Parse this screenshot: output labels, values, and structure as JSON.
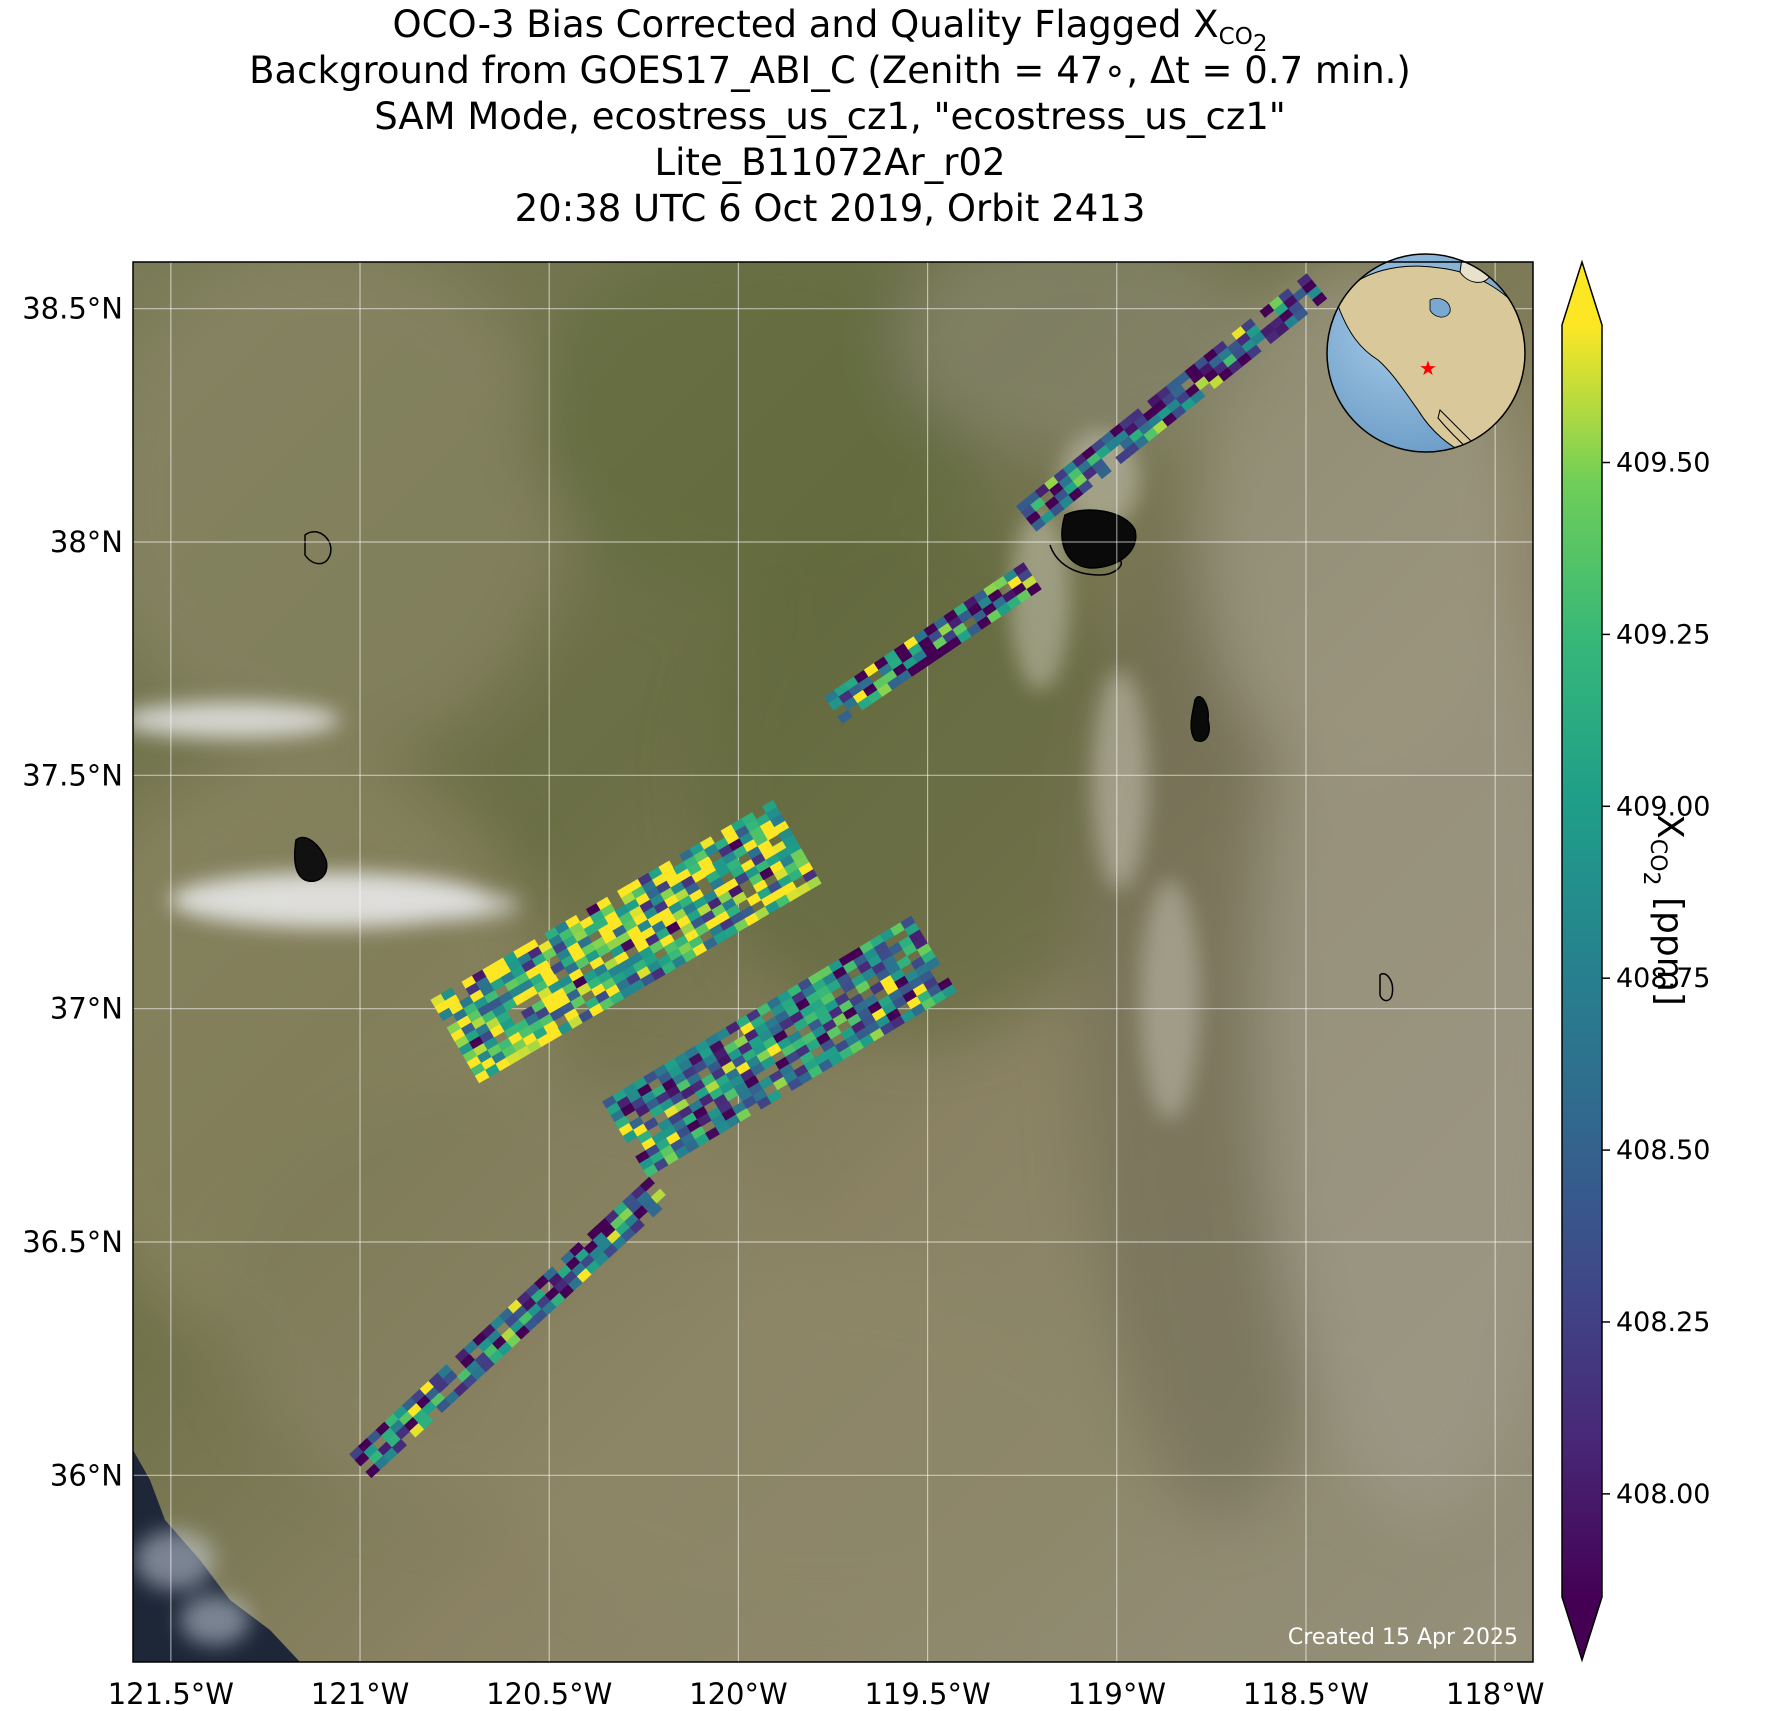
{
  "title": {
    "line1_text": "OCO-3 Bias Corrected and Quality Flagged X",
    "line1_sub": "CO",
    "line1_subsub": "2",
    "line2": "Background from GOES17_ABI_C (Zenith = 47∘, Δt =  0.7 min.)",
    "line3": "SAM Mode, ecostress_us_cz1, \"ecostress_us_cz1\"",
    "line4": "Lite_B11072Ar_r02",
    "line5": "20:38 UTC 6 Oct 2019, Orbit 2413"
  },
  "map": {
    "lon_range": [
      -121.6,
      -117.9
    ],
    "lat_range": [
      35.6,
      38.6
    ],
    "lon_ticks": [
      -121.5,
      -121.0,
      -120.5,
      -120.0,
      -119.5,
      -119.0,
      -118.5,
      -118.0
    ],
    "lon_tick_labels": [
      "121.5°W",
      "121°W",
      "120.5°W",
      "120°W",
      "119.5°W",
      "119°W",
      "118.5°W",
      "118°W"
    ],
    "lat_ticks": [
      36.0,
      36.5,
      37.0,
      37.5,
      38.0,
      38.5
    ],
    "lat_tick_labels": [
      "36°N",
      "36.5°N",
      "37°N",
      "37.5°N",
      "38°N",
      "38.5°N"
    ],
    "grid": true,
    "background": "satellite imagery (GOES17 ABI true color)",
    "credit": "Created 15 Apr 2025",
    "inset": "globe-locator-map",
    "inset_marker_color": "#ff0000"
  },
  "swaths": [
    {
      "name": "swath-north",
      "start": [
        -119.24,
        38.05
      ],
      "end": [
        -118.47,
        38.55
      ],
      "width_deg": 0.075,
      "mean": 408.4,
      "spread": 0.9
    },
    {
      "name": "swath-north-gap",
      "start": [
        -119.75,
        37.64
      ],
      "end": [
        -119.22,
        37.93
      ],
      "width_deg": 0.07,
      "mean": 408.5,
      "spread": 1.1
    },
    {
      "name": "swath-upper-block",
      "start": [
        -120.75,
        36.93
      ],
      "end": [
        -119.82,
        37.37
      ],
      "width_deg": 0.22,
      "mean": 409.3,
      "spread": 0.9
    },
    {
      "name": "swath-lower-block",
      "start": [
        -120.3,
        36.72
      ],
      "end": [
        -119.48,
        37.12
      ],
      "width_deg": 0.2,
      "mean": 408.7,
      "spread": 0.8
    },
    {
      "name": "swath-south",
      "start": [
        -121.0,
        36.02
      ],
      "end": [
        -120.2,
        36.62
      ],
      "width_deg": 0.08,
      "mean": 408.6,
      "spread": 1.0
    }
  ],
  "colorbar": {
    "colormap": "viridis",
    "vmin": 407.85,
    "vmax": 409.7,
    "extend": "both",
    "ticks": [
      408.0,
      408.25,
      408.5,
      408.75,
      409.0,
      409.25,
      409.5
    ],
    "tick_labels": [
      "408.00",
      "408.25",
      "408.50",
      "408.75",
      "409.00",
      "409.25",
      "409.50"
    ],
    "label_main": "X",
    "label_sub": "CO",
    "label_subsub": "2",
    "label_unit": " [ppm]"
  }
}
